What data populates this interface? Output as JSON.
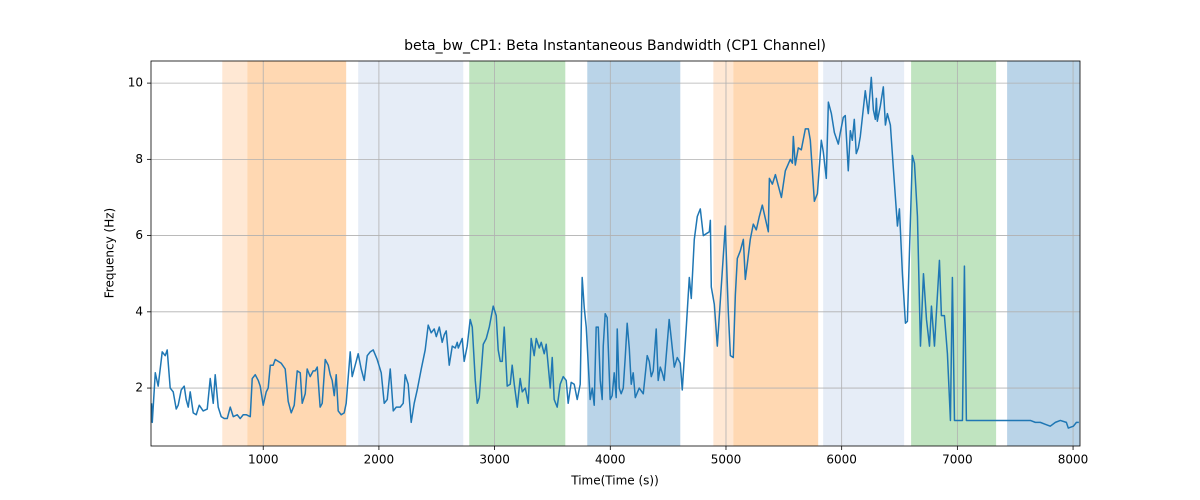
{
  "chart_data": {
    "type": "line",
    "title": "beta_bw_CP1: Beta Instantaneous Bandwidth (CP1 Channel)",
    "xlabel": "Time(Time (s))",
    "ylabel": "Frequency (Hz)",
    "xlim": [
      30,
      8060
    ],
    "ylim": [
      0.48,
      10.58
    ],
    "xticks": [
      1000,
      2000,
      3000,
      4000,
      5000,
      6000,
      7000,
      8000
    ],
    "yticks": [
      2,
      4,
      6,
      8,
      10
    ],
    "grid": true,
    "spans": [
      {
        "start": 646,
        "end": 862,
        "color": "#ffe8d4"
      },
      {
        "start": 862,
        "end": 1717,
        "color": "#ffd8b2"
      },
      {
        "start": 1821,
        "end": 2729,
        "color": "#e6edf7"
      },
      {
        "start": 2781,
        "end": 3611,
        "color": "#c0e4c0"
      },
      {
        "start": 3801,
        "end": 4605,
        "color": "#bad4e8"
      },
      {
        "start": 4891,
        "end": 5063,
        "color": "#ffe8d4"
      },
      {
        "start": 5063,
        "end": 5797,
        "color": "#ffd8b2"
      },
      {
        "start": 5840,
        "end": 6540,
        "color": "#e6edf7"
      },
      {
        "start": 6600,
        "end": 7335,
        "color": "#c0e4c0"
      },
      {
        "start": 7430,
        "end": 8060,
        "color": "#bad4e8"
      }
    ],
    "x": [
      35,
      41,
      67,
      92,
      127,
      153,
      170,
      196,
      222,
      248,
      265,
      291,
      317,
      334,
      352,
      369,
      395,
      421,
      447,
      481,
      516,
      542,
      568,
      585,
      611,
      637,
      663,
      689,
      715,
      741,
      775,
      801,
      827,
      853,
      888,
      905,
      931,
      957,
      974,
      1000,
      1026,
      1043,
      1061,
      1086,
      1104,
      1130,
      1156,
      1190,
      1216,
      1242,
      1268,
      1294,
      1320,
      1337,
      1363,
      1380,
      1406,
      1432,
      1449,
      1467,
      1492,
      1510,
      1536,
      1562,
      1579,
      1596,
      1614,
      1631,
      1648,
      1674,
      1700,
      1717,
      1752,
      1769,
      1795,
      1821,
      1847,
      1873,
      1899,
      1925,
      1951,
      1985,
      2020,
      2046,
      2072,
      2098,
      2124,
      2150,
      2184,
      2210,
      2227,
      2253,
      2279,
      2305,
      2331,
      2366,
      2400,
      2426,
      2452,
      2478,
      2496,
      2522,
      2547,
      2565,
      2582,
      2608,
      2634,
      2660,
      2677,
      2686,
      2720,
      2737,
      2763,
      2789,
      2807,
      2833,
      2850,
      2867,
      2902,
      2928,
      2954,
      2988,
      3014,
      3031,
      3049,
      3066,
      3083,
      3109,
      3135,
      3152,
      3170,
      3196,
      3221,
      3239,
      3265,
      3291,
      3316,
      3342,
      3360,
      3386,
      3403,
      3429,
      3446,
      3463,
      3481,
      3498,
      3515,
      3541,
      3567,
      3593,
      3619,
      3636,
      3662,
      3688,
      3714,
      3740,
      3757,
      3775,
      3792,
      3826,
      3844,
      3861,
      3878,
      3896,
      3913,
      3930,
      3939,
      3956,
      3973,
      3999,
      4016,
      4034,
      4051,
      4060,
      4077,
      4094,
      4112,
      4129,
      4146,
      4164,
      4181,
      4198,
      4216,
      4250,
      4285,
      4319,
      4337,
      4354,
      4371,
      4397,
      4414,
      4432,
      4449,
      4466,
      4509,
      4527,
      4553,
      4579,
      4605,
      4622,
      4657,
      4683,
      4700,
      4726,
      4752,
      4778,
      4804,
      4830,
      4856,
      4865,
      4873,
      4899,
      4925,
      4960,
      4994,
      5020,
      5038,
      5063,
      5081,
      5098,
      5124,
      5150,
      5167,
      5184,
      5210,
      5236,
      5262,
      5288,
      5314,
      5340,
      5366,
      5375,
      5401,
      5427,
      5453,
      5479,
      5513,
      5556,
      5574,
      5582,
      5599,
      5625,
      5651,
      5686,
      5712,
      5729,
      5764,
      5790,
      5824,
      5841,
      5867,
      5885,
      5911,
      5937,
      5971,
      5988,
      6014,
      6031,
      6057,
      6075,
      6092,
      6109,
      6126,
      6144,
      6161,
      6204,
      6230,
      6256,
      6274,
      6291,
      6300,
      6308,
      6334,
      6360,
      6378,
      6395,
      6421,
      6447,
      6482,
      6499,
      6525,
      6551,
      6568,
      6611,
      6629,
      6655,
      6681,
      6707,
      6733,
      6759,
      6776,
      6802,
      6845,
      6862,
      6888,
      6914,
      6940,
      6957,
      6975,
      7009,
      7044,
      7061,
      7078,
      7372,
      7631,
      7674,
      7717,
      7760,
      7803,
      7847,
      7890,
      7942,
      7959,
      8003,
      8029,
      8050
    ],
    "series": [
      {
        "color": "#1f77b4",
        "values": [
          1.6,
          1.1,
          2.4,
          2.05,
          2.95,
          2.85,
          3.0,
          2.0,
          1.9,
          1.45,
          1.55,
          1.95,
          2.05,
          1.7,
          1.5,
          1.9,
          1.35,
          1.3,
          1.55,
          1.4,
          1.45,
          2.25,
          1.6,
          2.35,
          1.5,
          1.25,
          1.2,
          1.2,
          1.5,
          1.25,
          1.3,
          1.2,
          1.3,
          1.3,
          1.25,
          2.25,
          2.35,
          2.2,
          2.05,
          1.55,
          1.9,
          2.0,
          2.6,
          2.6,
          2.75,
          2.7,
          2.65,
          2.5,
          1.65,
          1.35,
          1.55,
          2.45,
          2.4,
          1.6,
          1.85,
          2.5,
          2.3,
          2.45,
          2.45,
          2.55,
          1.5,
          1.6,
          2.75,
          2.6,
          2.35,
          2.2,
          1.8,
          2.35,
          1.4,
          1.3,
          1.35,
          1.6,
          2.95,
          2.3,
          2.6,
          2.9,
          2.5,
          2.2,
          2.85,
          2.95,
          3.0,
          2.75,
          2.4,
          1.6,
          1.7,
          2.5,
          1.4,
          1.5,
          1.5,
          1.6,
          2.35,
          2.1,
          1.1,
          1.6,
          1.95,
          2.5,
          3.0,
          3.65,
          3.45,
          3.55,
          3.35,
          3.6,
          3.2,
          3.4,
          3.5,
          2.6,
          3.1,
          3.05,
          3.2,
          3.05,
          3.3,
          2.7,
          3.1,
          3.8,
          3.6,
          2.2,
          1.6,
          1.75,
          3.15,
          3.3,
          3.6,
          4.15,
          3.9,
          3.0,
          2.7,
          2.7,
          3.6,
          2.05,
          2.1,
          2.6,
          2.1,
          1.5,
          2.25,
          1.9,
          2.0,
          1.6,
          3.3,
          2.85,
          3.3,
          3.05,
          3.2,
          2.9,
          3.15,
          2.6,
          2.0,
          2.8,
          1.7,
          1.5,
          2.1,
          2.3,
          2.2,
          1.6,
          2.15,
          2.1,
          1.7,
          2.1,
          4.9,
          4.1,
          3.6,
          1.7,
          2.0,
          1.55,
          3.6,
          3.6,
          2.2,
          1.7,
          3.1,
          3.95,
          3.85,
          1.7,
          1.8,
          2.4,
          1.75,
          3.55,
          2.0,
          1.85,
          2.0,
          2.8,
          3.7,
          3.05,
          2.1,
          2.4,
          1.75,
          2.0,
          1.85,
          2.85,
          2.7,
          2.3,
          2.45,
          3.55,
          2.2,
          2.55,
          2.4,
          2.2,
          3.8,
          3.3,
          2.55,
          2.8,
          2.65,
          1.95,
          3.6,
          4.9,
          4.35,
          5.9,
          6.5,
          6.7,
          6.0,
          6.05,
          6.1,
          6.4,
          4.65,
          4.2,
          3.1,
          4.7,
          6.25,
          4.0,
          2.85,
          2.8,
          4.45,
          5.4,
          5.6,
          5.9,
          4.85,
          5.25,
          5.9,
          6.3,
          6.15,
          6.5,
          6.8,
          6.45,
          6.1,
          7.5,
          7.35,
          7.6,
          7.3,
          7.0,
          7.7,
          8.0,
          7.9,
          8.6,
          7.85,
          8.3,
          8.25,
          8.8,
          8.8,
          8.5,
          6.9,
          7.1,
          8.5,
          8.2,
          7.5,
          9.5,
          9.2,
          8.7,
          8.4,
          8.7,
          9.1,
          9.15,
          7.7,
          8.75,
          8.5,
          9.05,
          8.15,
          8.3,
          8.6,
          9.8,
          9.2,
          10.15,
          9.3,
          9.05,
          9.6,
          9.0,
          9.4,
          9.9,
          8.9,
          9.2,
          8.9,
          7.75,
          6.25,
          6.7,
          5.0,
          3.7,
          3.75,
          8.1,
          7.9,
          6.5,
          3.1,
          5.0,
          3.8,
          3.1,
          4.15,
          3.1,
          5.35,
          3.9,
          3.9,
          2.9,
          1.15,
          4.9,
          1.15,
          1.15,
          1.15,
          5.2,
          1.15,
          1.15,
          1.15,
          1.1,
          1.1,
          1.05,
          1.0,
          1.1,
          1.15,
          1.1,
          0.95,
          1.0,
          1.1,
          1.1
        ]
      }
    ]
  }
}
